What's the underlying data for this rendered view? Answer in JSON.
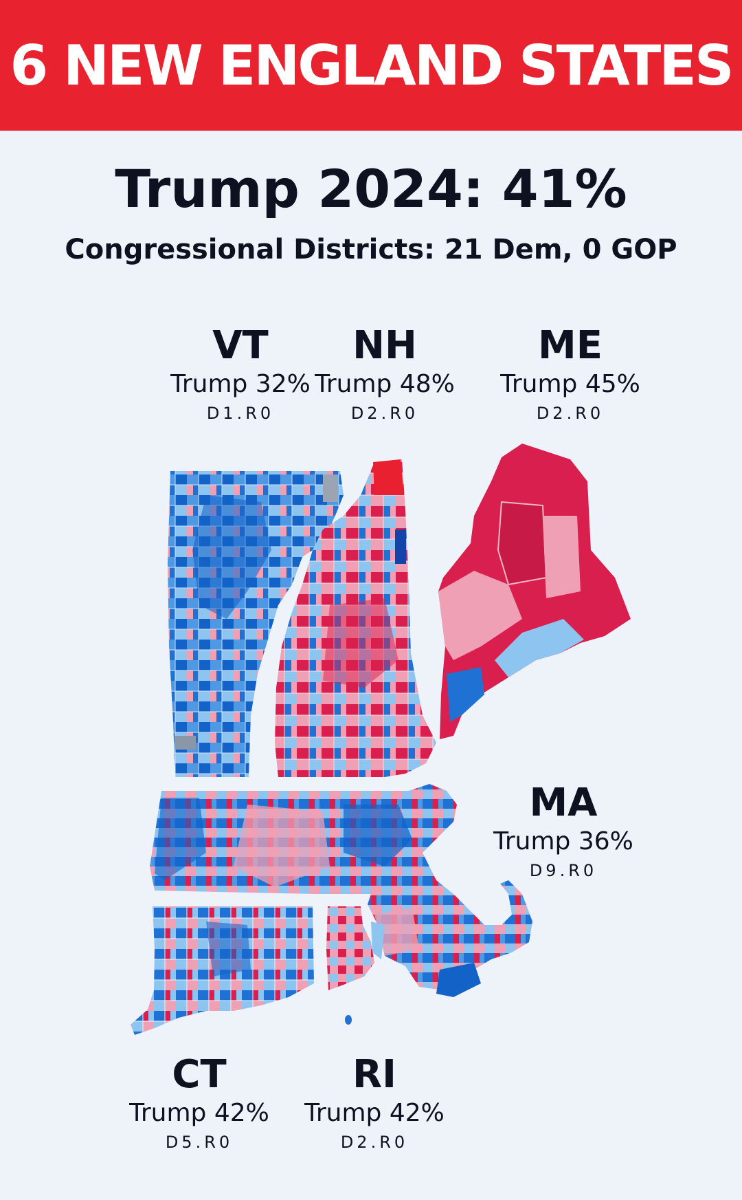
{
  "banner": {
    "title": "6 NEW ENGLAND STATES"
  },
  "headline": "Trump 2024: 41%",
  "subheadline": "Congressional Districts: 21 Dem, 0 GOP",
  "states": {
    "vt": {
      "abbr": "VT",
      "trump": "Trump 32%",
      "districts": "D1.R0"
    },
    "nh": {
      "abbr": "NH",
      "trump": "Trump 48%",
      "districts": "D2.R0"
    },
    "me": {
      "abbr": "ME",
      "trump": "Trump 45%",
      "districts": "D2.R0"
    },
    "ma": {
      "abbr": "MA",
      "trump": "Trump 36%",
      "districts": "D9.R0"
    },
    "ct": {
      "abbr": "CT",
      "trump": "Trump 42%",
      "districts": "D5.R0"
    },
    "ri": {
      "abbr": "RI",
      "trump": "Trump 42%",
      "districts": "D2.R0"
    }
  },
  "colors": {
    "banner_red": "#e8222f",
    "background": "#eef3fa",
    "text": "#0d1120",
    "safe_dem": "#1262c8",
    "lean_dem": "#8ec4f0",
    "lean_gop": "#f0a0b4",
    "safe_gop": "#d81f4e"
  }
}
